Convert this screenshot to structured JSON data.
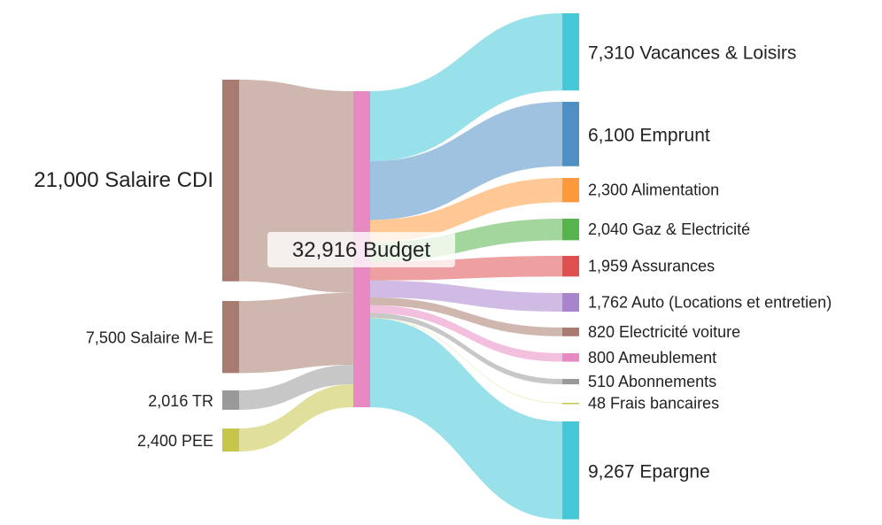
{
  "chart_data": {
    "type": "sankey",
    "center": {
      "value": "32,916",
      "name": "Budget",
      "color": "#e78ac3"
    },
    "sources": [
      {
        "value": "21,000",
        "name": "Salaire CDI",
        "amount": 21000,
        "color": "#a87b70"
      },
      {
        "value": "7,500",
        "name": "Salaire M-E",
        "amount": 7500,
        "color": "#a87b70"
      },
      {
        "value": "2,016",
        "name": "TR",
        "amount": 2016,
        "color": "#999999"
      },
      {
        "value": "2,400",
        "name": "PEE",
        "amount": 2400,
        "color": "#c6c64a"
      }
    ],
    "targets": [
      {
        "value": "7,310",
        "name": "Vacances & Loisirs",
        "amount": 7310,
        "color": "#45c9d9"
      },
      {
        "value": "6,100",
        "name": "Emprunt",
        "amount": 6100,
        "color": "#4f8fc4"
      },
      {
        "value": "2,300",
        "name": "Alimentation",
        "amount": 2300,
        "color": "#ff9a3c"
      },
      {
        "value": "2,040",
        "name": "Gaz & Electricité",
        "amount": 2040,
        "color": "#55b44c"
      },
      {
        "value": "1,959",
        "name": "Assurances",
        "amount": 1959,
        "color": "#e05050"
      },
      {
        "value": "1,762",
        "name": "Auto (Locations et entretien)",
        "amount": 1762,
        "color": "#a884cc"
      },
      {
        "value": "820",
        "name": "Electricité voiture",
        "amount": 820,
        "color": "#a87b70"
      },
      {
        "value": "800",
        "name": "Ameublement",
        "amount": 800,
        "color": "#e78ac3"
      },
      {
        "value": "510",
        "name": "Abonnements",
        "amount": 510,
        "color": "#999999"
      },
      {
        "value": "48",
        "name": "Frais bancaires",
        "amount": 48,
        "color": "#c6c64a"
      },
      {
        "value": "9,267",
        "name": "Epargne",
        "amount": 9267,
        "color": "#45c9d9"
      }
    ]
  }
}
